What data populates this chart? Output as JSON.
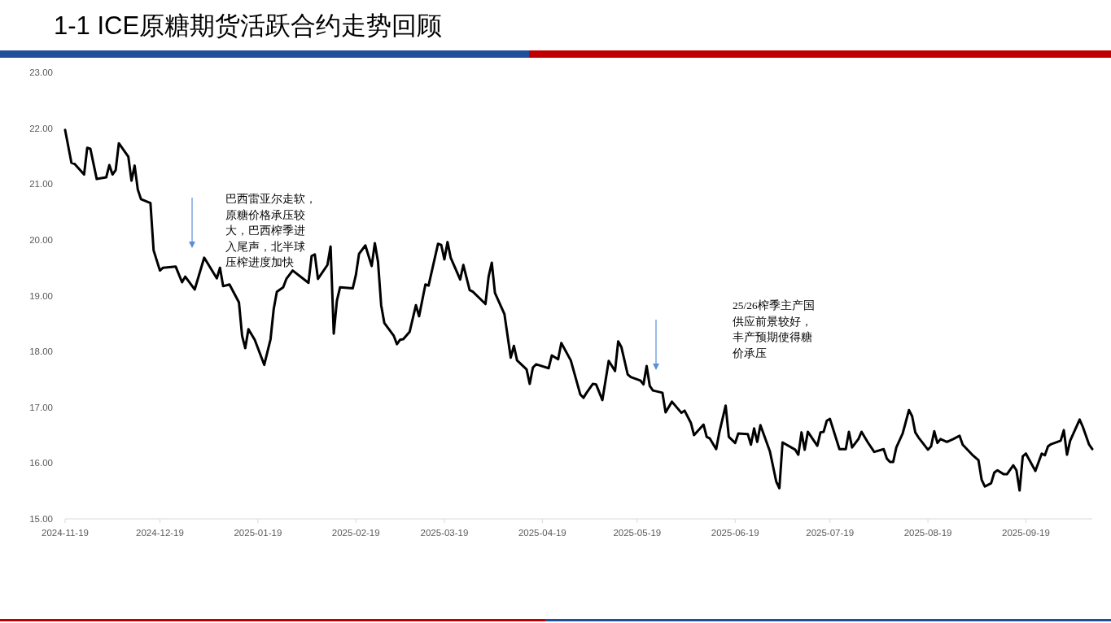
{
  "chart_data": {
    "type": "line",
    "title": "1-1 ICE原糖期货活跃合约走势回顾",
    "x": [
      "2024-11-19",
      "2024-11-21",
      "2024-11-22",
      "2024-11-25",
      "2024-11-26",
      "2024-11-27",
      "2024-11-29",
      "2024-12-02",
      "2024-12-03",
      "2024-12-04",
      "2024-12-05",
      "2024-12-06",
      "2024-12-09",
      "2024-12-10",
      "2024-12-11",
      "2024-12-12",
      "2024-12-13",
      "2024-12-16",
      "2024-12-17",
      "2024-12-19",
      "2024-12-20",
      "2024-12-24",
      "2024-12-26",
      "2024-12-27",
      "2024-12-30",
      "2025-01-02",
      "2025-01-06",
      "2025-01-07",
      "2025-01-08",
      "2025-01-10",
      "2025-01-13",
      "2025-01-14",
      "2025-01-15",
      "2025-01-16",
      "2025-01-18",
      "2025-01-21",
      "2025-01-23",
      "2025-01-24",
      "2025-01-25",
      "2025-01-27",
      "2025-01-28",
      "2025-01-30",
      "2025-02-04",
      "2025-02-05",
      "2025-02-06",
      "2025-02-07",
      "2025-02-10",
      "2025-02-11",
      "2025-02-12",
      "2025-02-13",
      "2025-02-14",
      "2025-02-18",
      "2025-02-19",
      "2025-02-20",
      "2025-02-22",
      "2025-02-24",
      "2025-02-25",
      "2025-02-26",
      "2025-02-27",
      "2025-02-28",
      "2025-03-03",
      "2025-03-04",
      "2025-03-05",
      "2025-03-06",
      "2025-03-08",
      "2025-03-10",
      "2025-03-11",
      "2025-03-13",
      "2025-03-14",
      "2025-03-17",
      "2025-03-18",
      "2025-03-19",
      "2025-03-20",
      "2025-03-21",
      "2025-03-24",
      "2025-03-25",
      "2025-03-27",
      "2025-03-28",
      "2025-04-01",
      "2025-04-02",
      "2025-04-03",
      "2025-04-04",
      "2025-04-07",
      "2025-04-09",
      "2025-04-10",
      "2025-04-11",
      "2025-04-14",
      "2025-04-15",
      "2025-04-16",
      "2025-04-17",
      "2025-04-21",
      "2025-04-22",
      "2025-04-24",
      "2025-04-25",
      "2025-04-28",
      "2025-05-01",
      "2025-05-02",
      "2025-05-03",
      "2025-05-05",
      "2025-05-06",
      "2025-05-08",
      "2025-05-10",
      "2025-05-12",
      "2025-05-13",
      "2025-05-14",
      "2025-05-16",
      "2025-05-17",
      "2025-05-20",
      "2025-05-21",
      "2025-05-22",
      "2025-05-23",
      "2025-05-24",
      "2025-05-27",
      "2025-05-28",
      "2025-05-30",
      "2025-06-02",
      "2025-06-03",
      "2025-06-05",
      "2025-06-06",
      "2025-06-09",
      "2025-06-10",
      "2025-06-11",
      "2025-06-13",
      "2025-06-14",
      "2025-06-16",
      "2025-06-17",
      "2025-06-19",
      "2025-06-20",
      "2025-06-23",
      "2025-06-24",
      "2025-06-25",
      "2025-06-26",
      "2025-06-27",
      "2025-06-30",
      "2025-07-02",
      "2025-07-03",
      "2025-07-04",
      "2025-07-08",
      "2025-07-09",
      "2025-07-10",
      "2025-07-11",
      "2025-07-12",
      "2025-07-15",
      "2025-07-16",
      "2025-07-17",
      "2025-07-18",
      "2025-07-19",
      "2025-07-22",
      "2025-07-24",
      "2025-07-25",
      "2025-07-26",
      "2025-07-28",
      "2025-07-29",
      "2025-07-31",
      "2025-08-02",
      "2025-08-05",
      "2025-08-06",
      "2025-08-07",
      "2025-08-08",
      "2025-08-09",
      "2025-08-11",
      "2025-08-13",
      "2025-08-14",
      "2025-08-15",
      "2025-08-16",
      "2025-08-19",
      "2025-08-20",
      "2025-08-21",
      "2025-08-22",
      "2025-08-23",
      "2025-08-25",
      "2025-08-27",
      "2025-08-29",
      "2025-08-30",
      "2025-09-02",
      "2025-09-04",
      "2025-09-05",
      "2025-09-06",
      "2025-09-08",
      "2025-09-09",
      "2025-09-10",
      "2025-09-12",
      "2025-09-13",
      "2025-09-15",
      "2025-09-16",
      "2025-09-17",
      "2025-09-18",
      "2025-09-19",
      "2025-09-22",
      "2025-09-24",
      "2025-09-25",
      "2025-09-26",
      "2025-09-27",
      "2025-09-30",
      "2025-10-01",
      "2025-10-02",
      "2025-10-03",
      "2025-10-06",
      "2025-10-07",
      "2025-10-09",
      "2025-10-10"
    ],
    "series": [
      {
        "color": "#000000",
        "values": [
          21.97,
          21.38,
          21.36,
          21.17,
          21.65,
          21.63,
          21.09,
          21.12,
          21.34,
          21.17,
          21.25,
          21.73,
          21.49,
          21.06,
          21.33,
          20.9,
          20.73,
          20.66,
          19.81,
          19.45,
          19.5,
          19.52,
          19.24,
          19.34,
          19.11,
          19.68,
          19.31,
          19.5,
          19.17,
          19.2,
          18.88,
          18.28,
          18.06,
          18.4,
          18.21,
          17.76,
          18.22,
          18.76,
          19.07,
          19.15,
          19.3,
          19.45,
          19.23,
          19.71,
          19.74,
          19.3,
          19.55,
          19.88,
          18.32,
          18.91,
          19.15,
          19.13,
          19.37,
          19.75,
          19.9,
          19.53,
          19.94,
          19.61,
          18.83,
          18.51,
          18.28,
          18.13,
          18.21,
          18.22,
          18.35,
          18.83,
          18.63,
          19.2,
          19.18,
          19.93,
          19.91,
          19.65,
          19.96,
          19.68,
          19.29,
          19.55,
          19.1,
          19.07,
          18.85,
          19.34,
          19.59,
          19.05,
          18.67,
          17.89,
          18.1,
          17.84,
          17.68,
          17.42,
          17.71,
          17.77,
          17.7,
          17.93,
          17.86,
          18.15,
          17.84,
          17.23,
          17.17,
          17.26,
          17.42,
          17.41,
          17.13,
          17.83,
          17.65,
          18.18,
          18.08,
          17.59,
          17.54,
          17.48,
          17.41,
          17.74,
          17.38,
          17.3,
          17.26,
          16.91,
          17.1,
          16.9,
          16.94,
          16.72,
          16.5,
          16.69,
          16.47,
          16.44,
          16.25,
          16.55,
          17.03,
          16.47,
          16.36,
          16.53,
          16.52,
          16.33,
          16.62,
          16.38,
          16.68,
          16.21,
          15.67,
          15.55,
          16.37,
          16.24,
          16.15,
          16.55,
          16.24,
          16.56,
          16.31,
          16.55,
          16.56,
          16.76,
          16.79,
          16.25,
          16.25,
          16.56,
          16.28,
          16.43,
          16.56,
          16.37,
          16.2,
          16.25,
          16.08,
          16.02,
          16.02,
          16.28,
          16.53,
          16.95,
          16.84,
          16.55,
          16.46,
          16.24,
          16.3,
          16.57,
          16.36,
          16.43,
          16.38,
          16.43,
          16.49,
          16.33,
          16.15,
          16.05,
          15.7,
          15.58,
          15.64,
          15.83,
          15.87,
          15.8,
          15.8,
          15.96,
          15.87,
          15.51,
          16.12,
          16.17,
          15.86,
          16.17,
          16.14,
          16.3,
          16.34,
          16.4,
          16.59,
          16.15,
          16.4,
          16.78,
          16.65,
          16.33,
          16.25
        ]
      }
    ],
    "xlim": [
      "2024-11-19",
      "2025-10-10"
    ],
    "xticks": [
      "2024-11-19",
      "2024-12-19",
      "2025-01-19",
      "2025-02-19",
      "2025-03-19",
      "2025-04-19",
      "2025-05-19",
      "2025-06-19",
      "2025-07-19",
      "2025-08-19",
      "2025-09-19"
    ],
    "ylim": [
      15,
      23
    ],
    "yticks": [
      {
        "value": 15,
        "label": "15.00"
      },
      {
        "value": 16,
        "label": "16.00"
      },
      {
        "value": 17,
        "label": "17.00"
      },
      {
        "value": 18,
        "label": "18.00"
      },
      {
        "value": 19,
        "label": "19.00"
      },
      {
        "value": 20,
        "label": "20.00"
      },
      {
        "value": 21,
        "label": "21.00"
      },
      {
        "value": 22,
        "label": "22.00"
      },
      {
        "value": 23,
        "label": "23.00"
      }
    ],
    "annotations": [
      "巴西雷亚尔走软，原糖价格承压较大，巴西榨季进入尾声，北半球压榨进度加快",
      "25/26榨季主产国供应前景较好，丰产预期使得糖价承压"
    ],
    "grid": false,
    "line_style": "solid"
  }
}
